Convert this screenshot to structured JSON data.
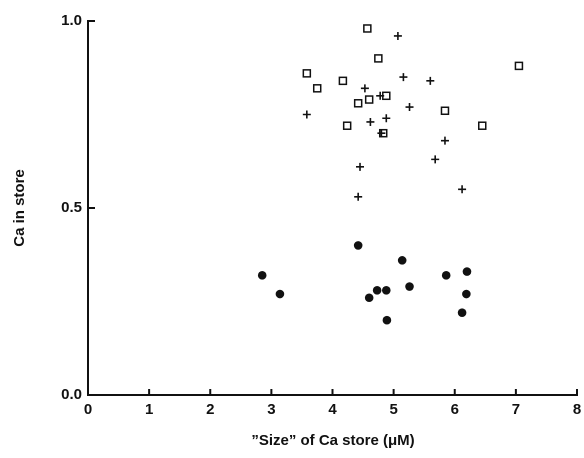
{
  "chart_data": {
    "type": "scatter",
    "x_label": "”Size” of Ca store (μM)",
    "y_label": "Ca in store",
    "xlim": [
      0,
      8
    ],
    "xticks": [
      0,
      1,
      2,
      3,
      4,
      5,
      6,
      7,
      8
    ],
    "ylim": [
      0,
      1
    ],
    "yticks": [
      {
        "value": 0,
        "label": "0.0"
      },
      {
        "value": 0.5,
        "label": "0.5"
      },
      {
        "value": 1,
        "label": "1.0"
      }
    ],
    "grid": false,
    "series": [
      {
        "marker": "square",
        "color": "#111111",
        "x": [
          4.57,
          3.58,
          3.75,
          4.17,
          4.75,
          7.05,
          4.42,
          4.24,
          4.6,
          4.88,
          5.84,
          6.45,
          4.83
        ],
        "values": [
          0.98,
          0.86,
          0.82,
          0.84,
          0.9,
          0.88,
          0.78,
          0.72,
          0.79,
          0.8,
          0.76,
          0.72,
          0.7
        ]
      },
      {
        "marker": "plus",
        "color": "#111111",
        "x": [
          3.58,
          5.07,
          5.16,
          5.6,
          4.53,
          4.78,
          5.26,
          4.62,
          4.88,
          4.8,
          5.84,
          4.45,
          5.68,
          4.42,
          6.12
        ],
        "values": [
          0.75,
          0.96,
          0.85,
          0.84,
          0.82,
          0.8,
          0.77,
          0.73,
          0.74,
          0.7,
          0.68,
          0.61,
          0.63,
          0.53,
          0.55
        ]
      },
      {
        "marker": "circle",
        "color": "#111111",
        "x": [
          2.85,
          3.14,
          4.42,
          5.14,
          4.73,
          4.88,
          4.6,
          5.26,
          4.89,
          5.86,
          6.2,
          6.19,
          6.12
        ],
        "values": [
          0.32,
          0.27,
          0.4,
          0.36,
          0.28,
          0.28,
          0.26,
          0.29,
          0.2,
          0.32,
          0.33,
          0.27,
          0.22
        ]
      }
    ]
  }
}
